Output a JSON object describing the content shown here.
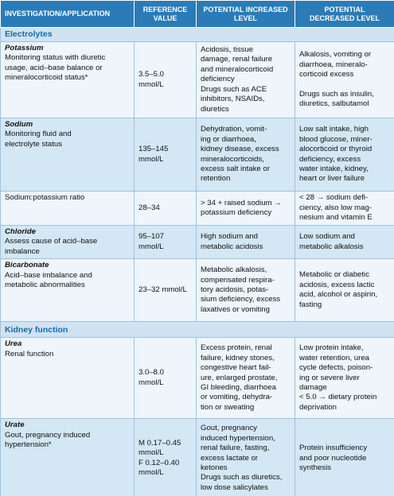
{
  "table": {
    "columns": [
      [
        "INVESTIGATION/APPLICATION"
      ],
      [
        "REFERENCE",
        "VALUE"
      ],
      [
        "POTENTIAL INCREASED",
        "LEVEL"
      ],
      [
        "POTENTIAL",
        "DECREASED LEVEL"
      ]
    ],
    "sections": [
      {
        "name": "Electrolytes",
        "rows": [
          {
            "name": "Potassium",
            "cells": [
              [
                [
                  "Monitoring status with diuretic",
                  "usage, acid–base balance or",
                  "mineralocorticoid status*"
                ]
              ],
              [
                [
                  "3.5–5.0",
                  "mmol/L"
                ]
              ],
              [
                [
                  "Acidosis, tissue",
                  "damage, renal failure",
                  "and mineralocorticoid",
                  "deficiency",
                  "Drugs such as ACE",
                  "inhibitors, NSAIDs,",
                  "diuretics"
                ]
              ],
              [
                [
                  "Alkalosis, vomiting or",
                  "diarrhoea, mineralo-",
                  "corticoid excess"
                ],
                [
                  "Drugs such as insulin,",
                  "diuretics, salbutamol"
                ]
              ]
            ]
          },
          {
            "name": "Sodium",
            "cells": [
              [
                [
                  "Monitoring fluid and",
                  "electrolyte status"
                ]
              ],
              [
                [
                  "135–145",
                  "mmol/L"
                ]
              ],
              [
                [
                  "Dehydration, vomit-",
                  "ing or diarrhoea,",
                  "kidney disease, excess",
                  "mineralocorticoids,",
                  "excess salt intake or",
                  "retention"
                ]
              ],
              [
                [
                  "Low salt intake, high",
                  "blood glucose, miner-",
                  "alocorticoid or thyroid",
                  "deficiency, excess",
                  "water intake, kidney,",
                  "heart or liver failure"
                ]
              ]
            ]
          },
          {
            "cells": [
              [
                [
                  "Sodium:potassium ratio"
                ]
              ],
              [
                [
                  "28–34"
                ]
              ],
              [
                [
                  "> 34 + raised sodium →",
                  "potassium deficiency"
                ]
              ],
              [
                [
                  "< 28 → sodium defi-",
                  "ciency, also low mag-",
                  "nesium and vitamin E"
                ]
              ]
            ]
          },
          {
            "name": "Chloride",
            "cells": [
              [
                [
                  "Assess cause of acid–base",
                  "imbalance"
                ]
              ],
              [
                [
                  "95–107",
                  "mmol/L"
                ]
              ],
              [
                [
                  "High sodium and",
                  "metabolic acidosis"
                ]
              ],
              [
                [
                  "Low sodium and",
                  "metabolic alkalosis"
                ]
              ]
            ]
          },
          {
            "name": "Bicarbonate",
            "cells": [
              [
                [
                  "Acid–base imbalance and",
                  "metabolic abnormalities"
                ]
              ],
              [
                [
                  "23–32 mmol/L"
                ]
              ],
              [
                [
                  "Metabolic alkalosis,",
                  "compensated respira-",
                  "tory acidosis, potas-",
                  "sium deficiency, excess",
                  "laxatives or vomiting"
                ]
              ],
              [
                [
                  "Metabolic or diabetic",
                  "acidosis, excess lactic",
                  "acid, alcohol or aspirin,",
                  "fasting"
                ]
              ]
            ]
          }
        ]
      },
      {
        "name": "Kidney function",
        "rows": [
          {
            "name": "Urea",
            "cells": [
              [
                [
                  "Renal function"
                ]
              ],
              [
                [
                  "3.0–8.0",
                  "mmol/L"
                ]
              ],
              [
                [
                  "Excess protein, renal",
                  "failure, kidney stones,",
                  "congestive heart fail-",
                  "ure, enlarged prostate,",
                  "GI bleeding, diarrhoea",
                  "or vomiting, dehydra-",
                  "tion or sweating"
                ]
              ],
              [
                [
                  "Low protein intake,",
                  "water retention, urea",
                  "cycle defects, poison-",
                  "ing or severe liver",
                  "damage",
                  "< 5.0 → dietary protein",
                  "deprivation"
                ]
              ]
            ]
          },
          {
            "name": "Urate",
            "cells": [
              [
                [
                  "Gout, pregnancy induced",
                  "hypertension*"
                ]
              ],
              [
                [
                  "M 0.17–0.45",
                  "mmol/L",
                  "F 0.12–0.40",
                  "mmol/L"
                ]
              ],
              [
                [
                  "Gout, pregnancy",
                  "induced hypertension,",
                  "renal failure, fasting,",
                  "excess lactate or",
                  "ketones",
                  "Drugs such as diuretics,",
                  "low dose salicylates"
                ]
              ],
              [
                [
                  "Protein insufficiency",
                  "and poor nucleotide",
                  "synthesis"
                ]
              ]
            ]
          }
        ]
      }
    ]
  }
}
